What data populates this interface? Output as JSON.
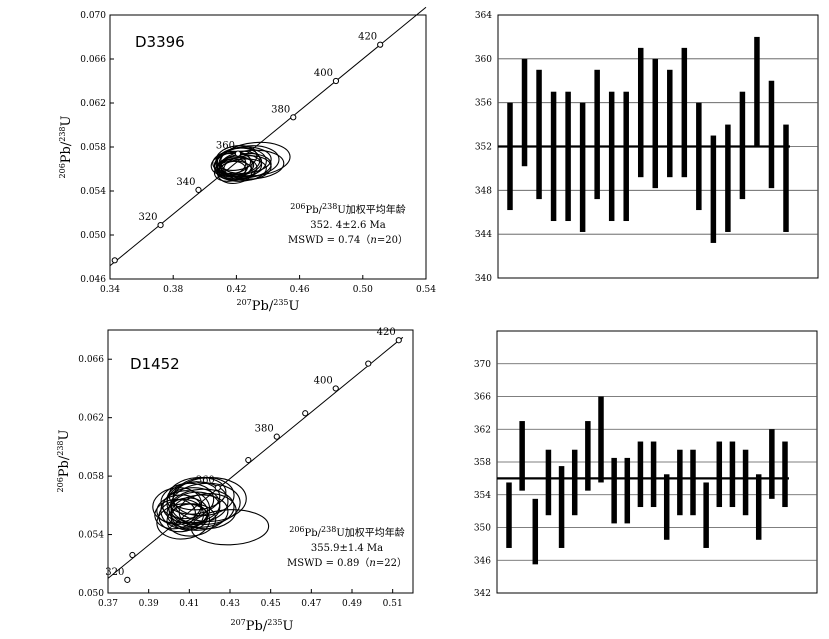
{
  "chart_data": [
    {
      "type": "scatter",
      "subtype": "concordia",
      "sample": "D3396",
      "xlabel": "207Pb/235U",
      "ylabel": "206Pb/238U",
      "xlim": [
        0.34,
        0.54
      ],
      "ylim": [
        0.046,
        0.07
      ],
      "xticks": [
        "0.34",
        "0.38",
        "0.42",
        "0.46",
        "0.50",
        "0.54"
      ],
      "yticks": [
        "0.046",
        "0.050",
        "0.054",
        "0.058",
        "0.062",
        "0.066",
        "0.070"
      ],
      "concordia_ages": [
        {
          "age": "320",
          "x": 0.372,
          "y": 0.0509
        },
        {
          "age": "340",
          "x": 0.396,
          "y": 0.0541
        },
        {
          "age": "360",
          "x": 0.421,
          "y": 0.0574
        },
        {
          "age": "380",
          "x": 0.456,
          "y": 0.0607
        },
        {
          "age": "400",
          "x": 0.483,
          "y": 0.064
        },
        {
          "age": "420",
          "x": 0.511,
          "y": 0.0673
        }
      ],
      "concordia_extra_points": [
        {
          "x": 0.343,
          "y": 0.0477
        }
      ],
      "concordia_line": [
        [
          0.34,
          0.0472
        ],
        [
          0.54,
          0.0707
        ]
      ],
      "ellipses": [
        {
          "x": 0.418,
          "y": 0.0563,
          "rx": 0.012,
          "ry": 0.0012,
          "rot": -8
        },
        {
          "x": 0.421,
          "y": 0.0565,
          "rx": 0.015,
          "ry": 0.0011,
          "rot": -6
        },
        {
          "x": 0.42,
          "y": 0.056,
          "rx": 0.013,
          "ry": 0.001,
          "rot": -5
        },
        {
          "x": 0.423,
          "y": 0.0566,
          "rx": 0.016,
          "ry": 0.0013,
          "rot": -4
        },
        {
          "x": 0.416,
          "y": 0.0558,
          "rx": 0.01,
          "ry": 0.0009,
          "rot": -10
        },
        {
          "x": 0.425,
          "y": 0.0568,
          "rx": 0.017,
          "ry": 0.0012,
          "rot": -3
        },
        {
          "x": 0.419,
          "y": 0.0557,
          "rx": 0.011,
          "ry": 0.001,
          "rot": -6
        },
        {
          "x": 0.428,
          "y": 0.0567,
          "rx": 0.019,
          "ry": 0.0014,
          "rot": -5
        },
        {
          "x": 0.422,
          "y": 0.0562,
          "rx": 0.014,
          "ry": 0.0011,
          "rot": -7
        },
        {
          "x": 0.417,
          "y": 0.0566,
          "rx": 0.012,
          "ry": 0.001,
          "rot": -4
        },
        {
          "x": 0.43,
          "y": 0.0564,
          "rx": 0.02,
          "ry": 0.0013,
          "rot": -3
        },
        {
          "x": 0.42,
          "y": 0.057,
          "rx": 0.013,
          "ry": 0.0011,
          "rot": -9
        },
        {
          "x": 0.424,
          "y": 0.0559,
          "rx": 0.015,
          "ry": 0.001,
          "rot": -5
        },
        {
          "x": 0.418,
          "y": 0.0561,
          "rx": 0.009,
          "ry": 0.0008,
          "rot": -6
        },
        {
          "x": 0.426,
          "y": 0.0563,
          "rx": 0.016,
          "ry": 0.0011,
          "rot": -4
        },
        {
          "x": 0.415,
          "y": 0.0564,
          "rx": 0.011,
          "ry": 0.001,
          "rot": -8
        },
        {
          "x": 0.432,
          "y": 0.0569,
          "rx": 0.022,
          "ry": 0.0015,
          "rot": -5
        },
        {
          "x": 0.421,
          "y": 0.0567,
          "rx": 0.014,
          "ry": 0.0012,
          "rot": -6
        },
        {
          "x": 0.419,
          "y": 0.0562,
          "rx": 0.012,
          "ry": 0.0009,
          "rot": -7
        },
        {
          "x": 0.427,
          "y": 0.0561,
          "rx": 0.015,
          "ry": 0.0011,
          "rot": -4
        }
      ],
      "annotation": {
        "line1_sup1": "206",
        "line1_a": "Pb/",
        "line1_sup2": "238",
        "line1_b": "U加权平均年龄",
        "line2": "352. 4±2.6 Ma",
        "line3_a": "MSWD = 0.74（",
        "line3_n": "n",
        "line3_b": "=20）"
      }
    },
    {
      "type": "bar",
      "subtype": "weighted-mean-error-bars",
      "ylim": [
        340,
        364
      ],
      "yticks": [
        "340",
        "344",
        "348",
        "352",
        "356",
        "360",
        "364"
      ],
      "gridlines": [
        344,
        348,
        352,
        356,
        360
      ],
      "mean": 352,
      "bars": [
        {
          "low": 346.2,
          "high": 356.0
        },
        {
          "low": 350.2,
          "high": 360.0
        },
        {
          "low": 347.2,
          "high": 359.0
        },
        {
          "low": 345.2,
          "high": 357.0
        },
        {
          "low": 345.2,
          "high": 357.0
        },
        {
          "low": 344.2,
          "high": 356.0
        },
        {
          "low": 347.2,
          "high": 359.0
        },
        {
          "low": 345.2,
          "high": 357.0
        },
        {
          "low": 345.2,
          "high": 357.0
        },
        {
          "low": 349.2,
          "high": 361.0
        },
        {
          "low": 348.2,
          "high": 360.0
        },
        {
          "low": 349.2,
          "high": 359.0
        },
        {
          "low": 349.2,
          "high": 361.0
        },
        {
          "low": 346.2,
          "high": 356.0
        },
        {
          "low": 343.2,
          "high": 353.0
        },
        {
          "low": 344.2,
          "high": 354.0
        },
        {
          "low": 347.2,
          "high": 357.0
        },
        {
          "low": 352.0,
          "high": 362.0
        },
        {
          "low": 348.2,
          "high": 358.0
        },
        {
          "low": 344.2,
          "high": 354.0
        }
      ]
    },
    {
      "type": "scatter",
      "subtype": "concordia",
      "sample": "D1452",
      "xlabel": "207Pb/235U",
      "ylabel": "206Pb/238U",
      "xlim": [
        0.37,
        0.52
      ],
      "ylim": [
        0.05,
        0.068
      ],
      "xticks": [
        "0.37",
        "0.39",
        "0.41",
        "0.43",
        "0.45",
        "0.47",
        "0.49",
        "0.51"
      ],
      "yticks": [
        "0.050",
        "0.054",
        "0.058",
        "0.062",
        "0.066"
      ],
      "concordia_ages": [
        {
          "age": "320",
          "x": 0.3795,
          "y": 0.0509
        },
        {
          "age": "360",
          "x": 0.424,
          "y": 0.0572
        },
        {
          "age": "380",
          "x": 0.453,
          "y": 0.0607
        },
        {
          "age": "400",
          "x": 0.482,
          "y": 0.064
        },
        {
          "age": "420",
          "x": 0.513,
          "y": 0.0673
        }
      ],
      "concordia_extra_points": [
        {
          "x": 0.382,
          "y": 0.0526
        },
        {
          "x": 0.439,
          "y": 0.0591
        },
        {
          "x": 0.467,
          "y": 0.0623
        },
        {
          "x": 0.498,
          "y": 0.0657
        }
      ],
      "concordia_line": [
        [
          0.37,
          0.051
        ],
        [
          0.515,
          0.0675
        ]
      ],
      "ellipses": [
        {
          "x": 0.408,
          "y": 0.0557,
          "rx": 0.012,
          "ry": 0.0013,
          "rot": -5
        },
        {
          "x": 0.411,
          "y": 0.056,
          "rx": 0.014,
          "ry": 0.0012,
          "rot": -4
        },
        {
          "x": 0.406,
          "y": 0.0553,
          "rx": 0.011,
          "ry": 0.0011,
          "rot": -6
        },
        {
          "x": 0.414,
          "y": 0.0562,
          "rx": 0.015,
          "ry": 0.0014,
          "rot": -3
        },
        {
          "x": 0.409,
          "y": 0.0555,
          "rx": 0.01,
          "ry": 0.001,
          "rot": -5
        },
        {
          "x": 0.416,
          "y": 0.0558,
          "rx": 0.016,
          "ry": 0.0013,
          "rot": -4
        },
        {
          "x": 0.404,
          "y": 0.056,
          "rx": 0.012,
          "ry": 0.0012,
          "rot": -7
        },
        {
          "x": 0.412,
          "y": 0.0565,
          "rx": 0.013,
          "ry": 0.0011,
          "rot": -5
        },
        {
          "x": 0.418,
          "y": 0.0561,
          "rx": 0.017,
          "ry": 0.0014,
          "rot": -3
        },
        {
          "x": 0.407,
          "y": 0.0549,
          "rx": 0.013,
          "ry": 0.0012,
          "rot": -6
        },
        {
          "x": 0.41,
          "y": 0.0552,
          "rx": 0.009,
          "ry": 0.0009,
          "rot": -4
        },
        {
          "x": 0.415,
          "y": 0.0555,
          "rx": 0.014,
          "ry": 0.0012,
          "rot": -5
        },
        {
          "x": 0.42,
          "y": 0.0564,
          "rx": 0.018,
          "ry": 0.0015,
          "rot": -2
        },
        {
          "x": 0.405,
          "y": 0.0557,
          "rx": 0.011,
          "ry": 0.001,
          "rot": -6
        },
        {
          "x": 0.413,
          "y": 0.0558,
          "rx": 0.012,
          "ry": 0.0011,
          "rot": -5
        },
        {
          "x": 0.417,
          "y": 0.0566,
          "rx": 0.015,
          "ry": 0.0013,
          "rot": -4
        },
        {
          "x": 0.409,
          "y": 0.0563,
          "rx": 0.013,
          "ry": 0.0012,
          "rot": -6
        },
        {
          "x": 0.411,
          "y": 0.055,
          "rx": 0.012,
          "ry": 0.0011,
          "rot": -4
        },
        {
          "x": 0.403,
          "y": 0.0554,
          "rx": 0.01,
          "ry": 0.001,
          "rot": -7
        },
        {
          "x": 0.419,
          "y": 0.0556,
          "rx": 0.014,
          "ry": 0.0012,
          "rot": -3
        },
        {
          "x": 0.43,
          "y": 0.0545,
          "rx": 0.019,
          "ry": 0.0012,
          "rot": -2
        },
        {
          "x": 0.414,
          "y": 0.0568,
          "rx": 0.014,
          "ry": 0.0011,
          "rot": -5
        }
      ],
      "annotation": {
        "line1_sup1": "206",
        "line1_a": "Pb/",
        "line1_sup2": "238",
        "line1_b": "U加权平均年龄",
        "line2": "355.9±1.4 Ma",
        "line3_a": "MSWD = 0.89（",
        "line3_n": "n",
        "line3_b": "=22）"
      }
    },
    {
      "type": "bar",
      "subtype": "weighted-mean-error-bars",
      "ylim": [
        342,
        374
      ],
      "yticks": [
        "342",
        "346",
        "350",
        "354",
        "358",
        "362",
        "366",
        "370"
      ],
      "gridlines": [
        346,
        350,
        354,
        358,
        362,
        366,
        370
      ],
      "mean": 356,
      "bars": [
        {
          "low": 347.5,
          "high": 355.5
        },
        {
          "low": 354.5,
          "high": 363.0
        },
        {
          "low": 345.5,
          "high": 353.5
        },
        {
          "low": 351.5,
          "high": 359.5
        },
        {
          "low": 347.5,
          "high": 357.5
        },
        {
          "low": 351.5,
          "high": 359.5
        },
        {
          "low": 354.5,
          "high": 363.0
        },
        {
          "low": 355.5,
          "high": 366.0
        },
        {
          "low": 350.5,
          "high": 358.5
        },
        {
          "low": 350.5,
          "high": 358.5
        },
        {
          "low": 352.5,
          "high": 360.5
        },
        {
          "low": 352.5,
          "high": 360.5
        },
        {
          "low": 348.5,
          "high": 356.5
        },
        {
          "low": 351.5,
          "high": 359.5
        },
        {
          "low": 351.5,
          "high": 359.5
        },
        {
          "low": 347.5,
          "high": 355.5
        },
        {
          "low": 352.5,
          "high": 360.5
        },
        {
          "low": 352.5,
          "high": 360.5
        },
        {
          "low": 351.5,
          "high": 359.5
        },
        {
          "low": 348.5,
          "high": 356.5
        },
        {
          "low": 353.5,
          "high": 362.0
        },
        {
          "low": 352.5,
          "high": 360.5
        }
      ]
    }
  ]
}
